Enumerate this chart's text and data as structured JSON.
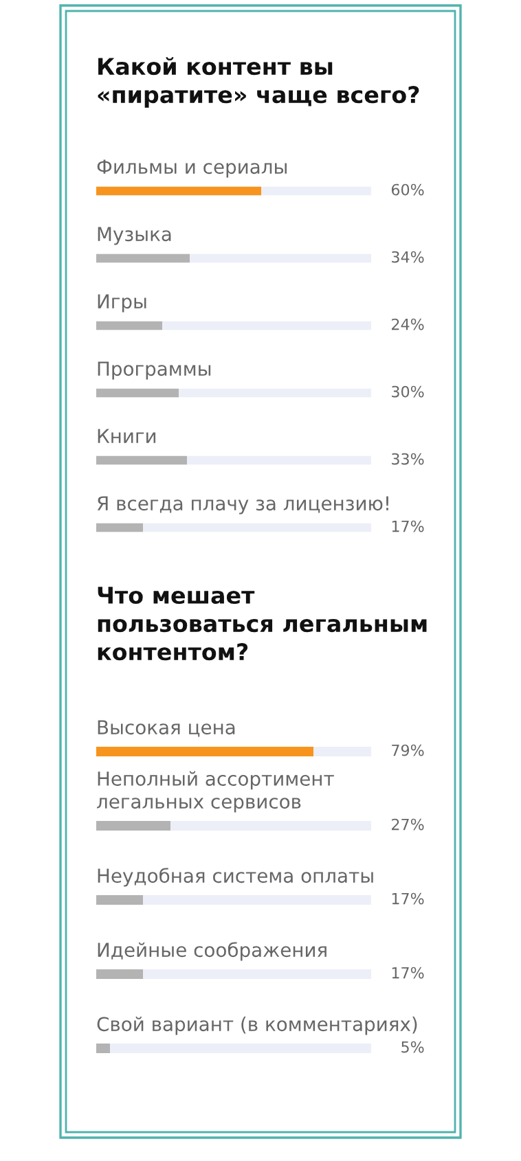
{
  "chart_data": [
    {
      "type": "bar",
      "orientation": "horizontal",
      "title": "Какой контент вы\n«пиратите» чаще всего?",
      "categories": [
        "Фильмы и сериалы",
        "Музыка",
        "Игры",
        "Программы",
        "Книги",
        "Я всегда плачу за лицензию!"
      ],
      "values": [
        60,
        34,
        24,
        30,
        33,
        17
      ],
      "colors": [
        "#f7941d",
        "#b3b3b3",
        "#b3b3b3",
        "#b3b3b3",
        "#b3b3b3",
        "#b3b3b3"
      ],
      "value_labels": [
        "60%",
        "34%",
        "24%",
        "30%",
        "33%",
        "17%"
      ],
      "xlim": [
        0,
        100
      ]
    },
    {
      "type": "bar",
      "orientation": "horizontal",
      "title": "Что мешает\nпользоваться легальным\nконтентом?",
      "categories": [
        "Высокая цена",
        "Неполный ассортимент\nлегальных сервисов",
        "Неудобная система оплаты",
        "Идейные соображения",
        "Свой вариант (в комментариях)"
      ],
      "values": [
        79,
        27,
        17,
        17,
        5
      ],
      "colors": [
        "#f7941d",
        "#b3b3b3",
        "#b3b3b3",
        "#b3b3b3",
        "#b3b3b3"
      ],
      "value_labels": [
        "79%",
        "27%",
        "17%",
        "17%",
        "5%"
      ],
      "xlim": [
        0,
        100
      ]
    }
  ]
}
